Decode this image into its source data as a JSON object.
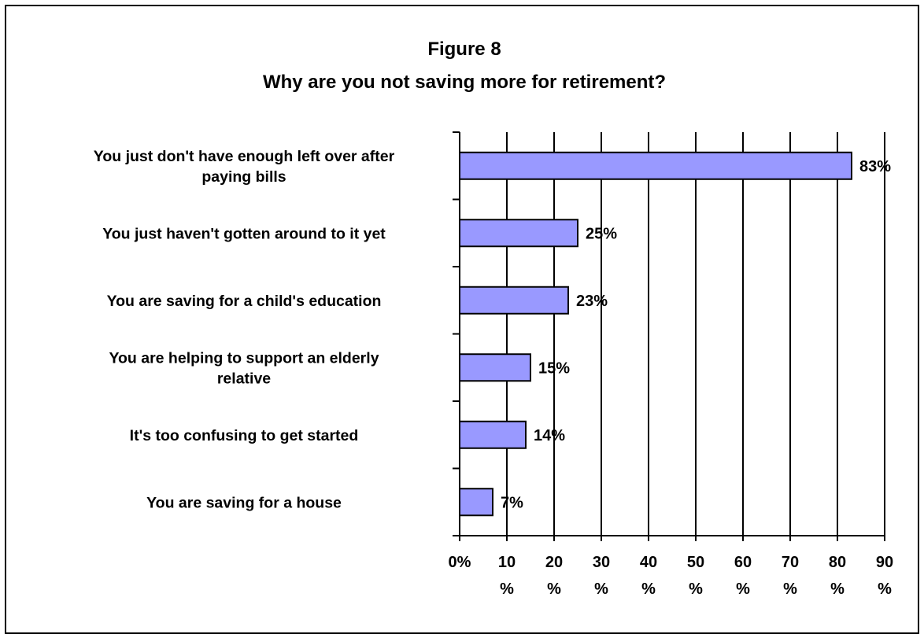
{
  "chart_data": {
    "type": "bar",
    "orientation": "horizontal",
    "title": "Figure 8",
    "subtitle": "Why are you not saving more for retirement?",
    "categories": [
      "You just don't have enough left over after paying bills",
      "You just haven't gotten around to it yet",
      "You are saving for a child's education",
      "You are helping to support an elderly relative",
      "It's too confusing to get started",
      "You are saving for a house"
    ],
    "category_lines": [
      [
        "You just don't have enough left over after",
        "paying bills"
      ],
      [
        "You just haven't gotten around to it yet"
      ],
      [
        "You are saving for a child's education"
      ],
      [
        "You are helping to support an elderly",
        "relative"
      ],
      [
        "It's too confusing to get started"
      ],
      [
        "You are saving for a house"
      ]
    ],
    "values": [
      83,
      25,
      23,
      15,
      14,
      7
    ],
    "data_labels": [
      "83%",
      "25%",
      "23%",
      "15%",
      "14%",
      "7%"
    ],
    "xlim": [
      0,
      90
    ],
    "xticks": [
      0,
      10,
      20,
      30,
      40,
      50,
      60,
      70,
      80,
      90
    ],
    "xtick_labels": [
      [
        "0%"
      ],
      [
        "10",
        "%"
      ],
      [
        "20",
        "%"
      ],
      [
        "30",
        "%"
      ],
      [
        "40",
        "%"
      ],
      [
        "50",
        "%"
      ],
      [
        "60",
        "%"
      ],
      [
        "70",
        "%"
      ],
      [
        "80",
        "%"
      ],
      [
        "90",
        "%"
      ]
    ],
    "grid": "vertical",
    "legend": "none",
    "colors": {
      "bar_fill": "#9999ff",
      "bar_stroke": "#000000",
      "grid": "#000000"
    }
  }
}
